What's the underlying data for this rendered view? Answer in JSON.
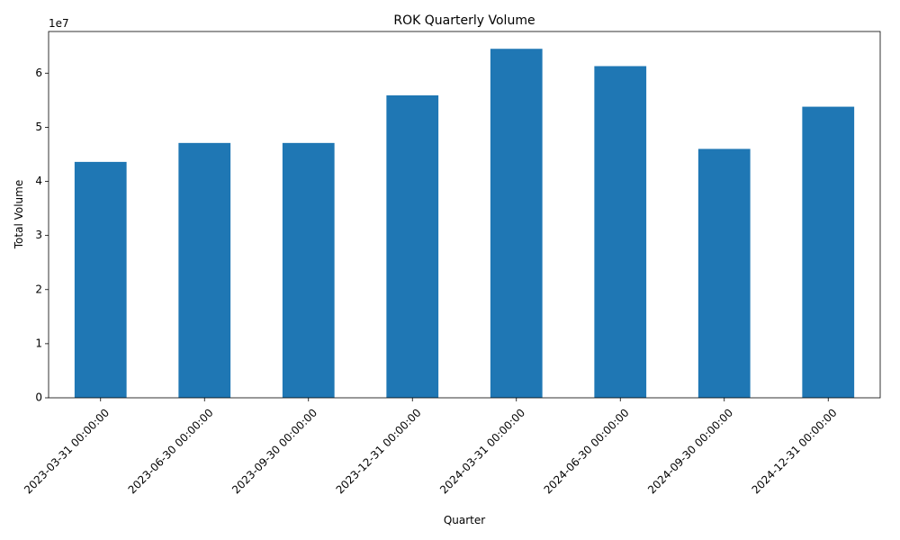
{
  "chart_data": {
    "type": "bar",
    "title": "ROK Quarterly Volume",
    "xlabel": "Quarter",
    "ylabel": "Total Volume",
    "offset_text": "1e7",
    "categories": [
      "2023-03-31 00:00:00",
      "2023-06-30 00:00:00",
      "2023-09-30 00:00:00",
      "2023-12-31 00:00:00",
      "2024-03-31 00:00:00",
      "2024-06-30 00:00:00",
      "2024-09-30 00:00:00",
      "2024-12-31 00:00:00"
    ],
    "values": [
      43600000,
      47100000,
      47100000,
      55900000,
      64500000,
      61300000,
      46000000,
      53800000
    ],
    "ylim": [
      0,
      67700000
    ],
    "yticks": [
      0,
      10000000,
      20000000,
      30000000,
      40000000,
      50000000,
      60000000
    ],
    "ytick_labels": [
      "0",
      "1",
      "2",
      "3",
      "4",
      "5",
      "6"
    ],
    "bar_color": "#1f77b4",
    "grid": false,
    "legend": "none"
  }
}
